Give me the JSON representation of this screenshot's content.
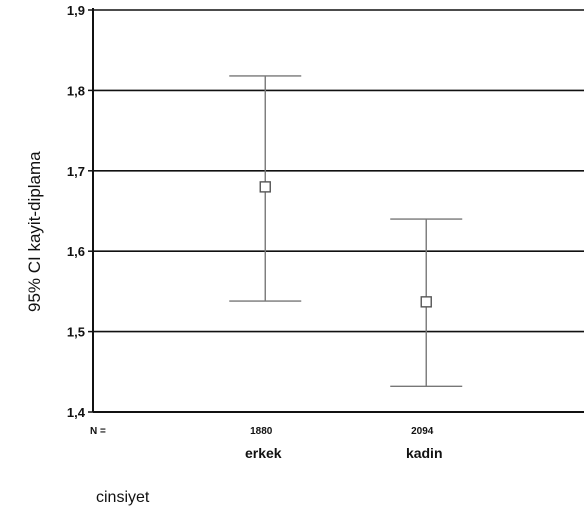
{
  "chart_data": {
    "type": "errorbar",
    "ylabel": "95% CI kayit-diplama",
    "xlabel": "cinsiyet",
    "ylim": [
      1.4,
      1.9
    ],
    "yticks": [
      "1,4",
      "1,5",
      "1,6",
      "1,7",
      "1,8",
      "1,9"
    ],
    "grid": true,
    "n_label": "N =",
    "categories": [
      "erkek",
      "kadin"
    ],
    "n_values": [
      "1880",
      "2094"
    ],
    "means": [
      1.68,
      1.537
    ],
    "ci_lower": [
      1.538,
      1.432
    ],
    "ci_upper": [
      1.818,
      1.64
    ],
    "colors": {
      "gridline": "#111111",
      "errorbar": "#777777",
      "marker": "#555555"
    }
  }
}
